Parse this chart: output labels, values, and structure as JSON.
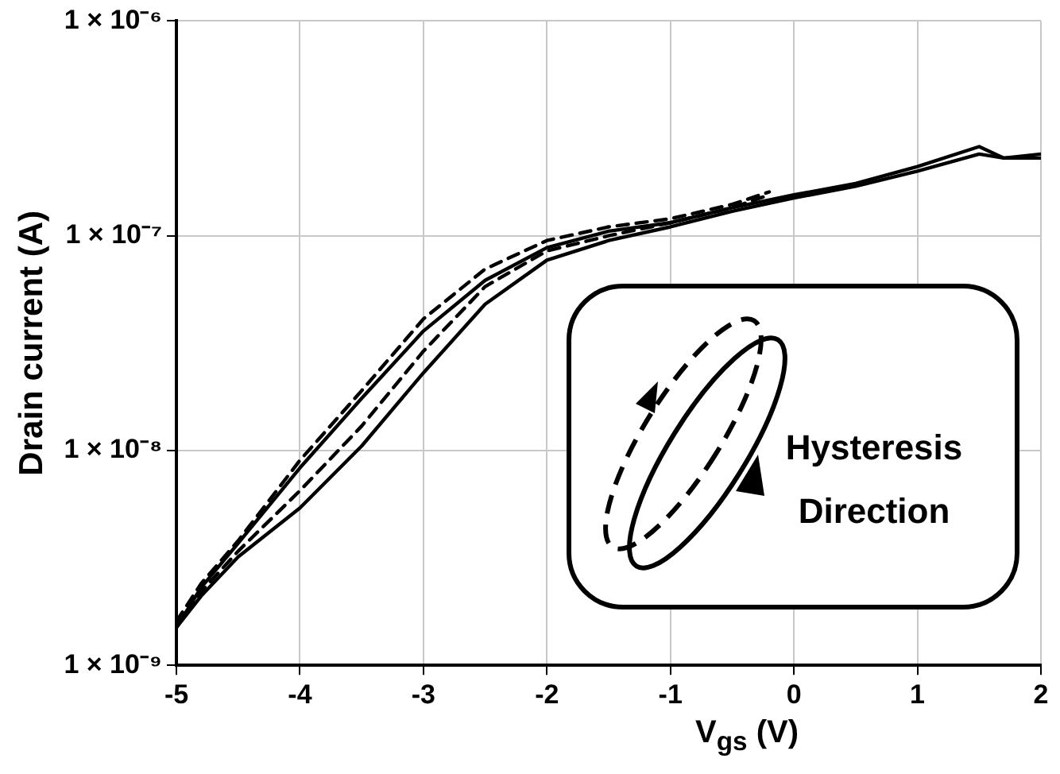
{
  "chart_data": {
    "type": "line",
    "xlabel": "V$_{gs}$ (V)",
    "ylabel": "Drain current (A)",
    "xlim": [
      -5,
      2
    ],
    "xticks": [
      -5,
      -4,
      -3,
      -2,
      -1,
      0,
      1,
      2
    ],
    "ylim": [
      1e-09,
      1e-06
    ],
    "yticks": [
      {
        "value": 1e-09,
        "label": "1 × 10⁻⁹"
      },
      {
        "value": 1e-08,
        "label": "1 × 10⁻⁸"
      },
      {
        "value": 1e-07,
        "label": "1 × 10⁻⁷"
      },
      {
        "value": 1e-06,
        "label": "1 × 10⁻⁶"
      }
    ],
    "log": "y",
    "grid": true,
    "legend": false,
    "marker": "none",
    "annotations": [
      "Hysteresis Direction"
    ],
    "series": [
      {
        "color": "#000000",
        "line_style": "solid",
        "x": [
          -5,
          -4.8,
          -4.5,
          -4,
          -3.5,
          -3,
          -2.5,
          -2,
          -1.5,
          -1,
          -0.5,
          0,
          0.5,
          1,
          1.5,
          1.7,
          2
        ],
        "values": [
          1.5e-09,
          2.3e-09,
          3.7e-09,
          8.3e-09,
          1.75e-08,
          3.6e-08,
          6.2e-08,
          8.8e-08,
          1.05e-07,
          1.15e-07,
          1.35e-07,
          1.55e-07,
          1.75e-07,
          2.1e-07,
          2.6e-07,
          2.3e-07,
          2.4e-07
        ]
      },
      {
        "color": "#000000",
        "line_style": "solid",
        "x": [
          -5,
          -4.8,
          -4.5,
          -4,
          -3.5,
          -3,
          -2.5,
          -2,
          -1.5,
          -1,
          -0.5,
          0,
          0.5,
          1,
          1.5,
          1.7,
          2
        ],
        "values": [
          1.5e-09,
          2.1e-09,
          3.2e-09,
          5.4e-09,
          1.05e-08,
          2.3e-08,
          4.8e-08,
          7.7e-08,
          9.5e-08,
          1.1e-07,
          1.3e-07,
          1.5e-07,
          1.7e-07,
          2e-07,
          2.4e-07,
          2.3e-07,
          2.3e-07
        ]
      },
      {
        "color": "#000000",
        "line_style": "dashed",
        "x": [
          -5,
          -4.8,
          -4.5,
          -4,
          -3.5,
          -3,
          -2.5,
          -2,
          -1.5,
          -1,
          -0.5,
          -0.2
        ],
        "values": [
          1.6e-09,
          2.4e-09,
          3.8e-09,
          9e-09,
          1.9e-08,
          4.1e-08,
          7e-08,
          9.5e-08,
          1.1e-07,
          1.2e-07,
          1.4e-07,
          1.6e-07
        ]
      },
      {
        "color": "#000000",
        "line_style": "dashed",
        "x": [
          -5,
          -4.8,
          -4.5,
          -4,
          -3.5,
          -3,
          -2.5,
          -2,
          -1.5,
          -1,
          -0.5,
          -0.2
        ],
        "values": [
          1.5e-09,
          2.2e-09,
          3.4e-09,
          6.5e-09,
          1.3e-08,
          2.9e-08,
          5.8e-08,
          8.5e-08,
          1e-07,
          1.15e-07,
          1.35e-07,
          1.55e-07
        ]
      }
    ]
  }
}
